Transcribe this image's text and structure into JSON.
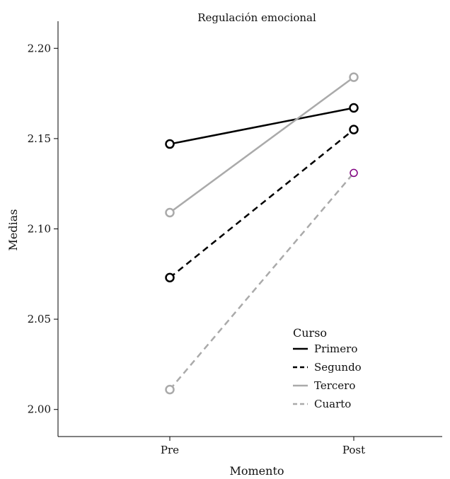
{
  "chart_data": {
    "type": "line",
    "title": "Regulación emocional",
    "xlabel": "Momento",
    "ylabel": "Medias",
    "categories": [
      "Pre",
      "Post"
    ],
    "ylim": [
      1.985,
      2.215
    ],
    "yticks": [
      2.0,
      2.05,
      2.1,
      2.15,
      2.2
    ],
    "ytick_labels": [
      "2.00",
      "2.05",
      "2.10",
      "2.15",
      "2.20"
    ],
    "grid": false,
    "legend": {
      "title": "Curso",
      "position": "bottom-right"
    },
    "series": [
      {
        "name": "Primero",
        "values": [
          2.147,
          2.167
        ],
        "color": "#000000",
        "dash": "solid"
      },
      {
        "name": "Segundo",
        "values": [
          2.073,
          2.155
        ],
        "color": "#000000",
        "dash": "dashed"
      },
      {
        "name": "Tercero",
        "values": [
          2.109,
          2.184
        ],
        "color": "#aaaaaa",
        "dash": "solid"
      },
      {
        "name": "Cuarto",
        "values": [
          2.011,
          2.131
        ],
        "color": "#aaaaaa",
        "dash": "dashed"
      }
    ],
    "marker_overrides": [
      {
        "series": "Cuarto",
        "point": "Post",
        "color": "#800080"
      }
    ]
  }
}
